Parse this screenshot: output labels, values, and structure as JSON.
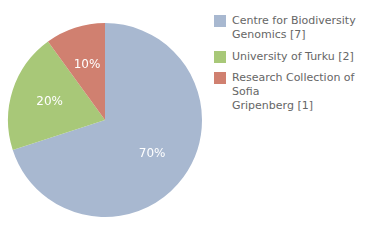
{
  "chart_data": {
    "type": "pie",
    "categories": [
      "Centre for Biodiversity\nGenomics [7]",
      "University of Turku [2]",
      "Research Collection of Sofia\nGripenberg [1]"
    ],
    "values": [
      70,
      20,
      10
    ],
    "value_labels": [
      "70%",
      "20%",
      "10%"
    ],
    "colors": [
      "#a8b8d0",
      "#a8c878",
      "#d08070"
    ],
    "data_labels": true,
    "legend": "right"
  }
}
